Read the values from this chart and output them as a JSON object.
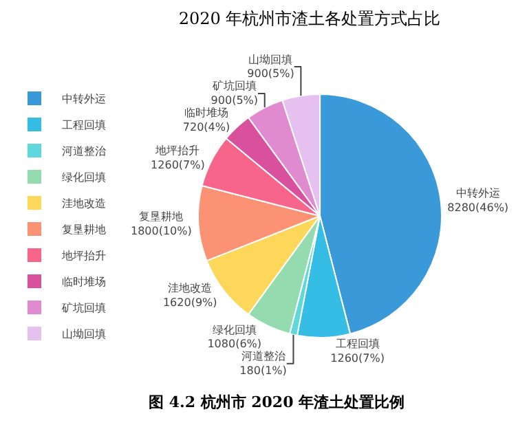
{
  "chart_data": {
    "type": "pie",
    "title": "2020 年杭州市渣土各处置方式占比",
    "categories": [
      "中转外运",
      "工程回填",
      "河道整治",
      "绿化回填",
      "洼地改造",
      "复垦耕地",
      "地坪抬升",
      "临时堆场",
      "矿坑回填",
      "山坳回填"
    ],
    "values": [
      8280,
      1260,
      180,
      1080,
      1620,
      1800,
      1260,
      720,
      900,
      900
    ],
    "value_labels": [
      "8280(46%)",
      "1260(7%)",
      "180(1%)",
      "1080(6%)",
      "1620(9%)",
      "1800(10%)",
      "1260(7%)",
      "720(4%)",
      "900(5%)",
      "900(5%)"
    ],
    "colors": [
      "#3a9ad9",
      "#36bde6",
      "#5fd8dc",
      "#94dcb0",
      "#fdd75a",
      "#fb9273",
      "#f7658a",
      "#d9509d",
      "#e08bd0",
      "#e6c0ef"
    ],
    "legend": "left",
    "annotations": [
      "图 4.2 杭州市 2020 年渣土处置比例"
    ]
  }
}
